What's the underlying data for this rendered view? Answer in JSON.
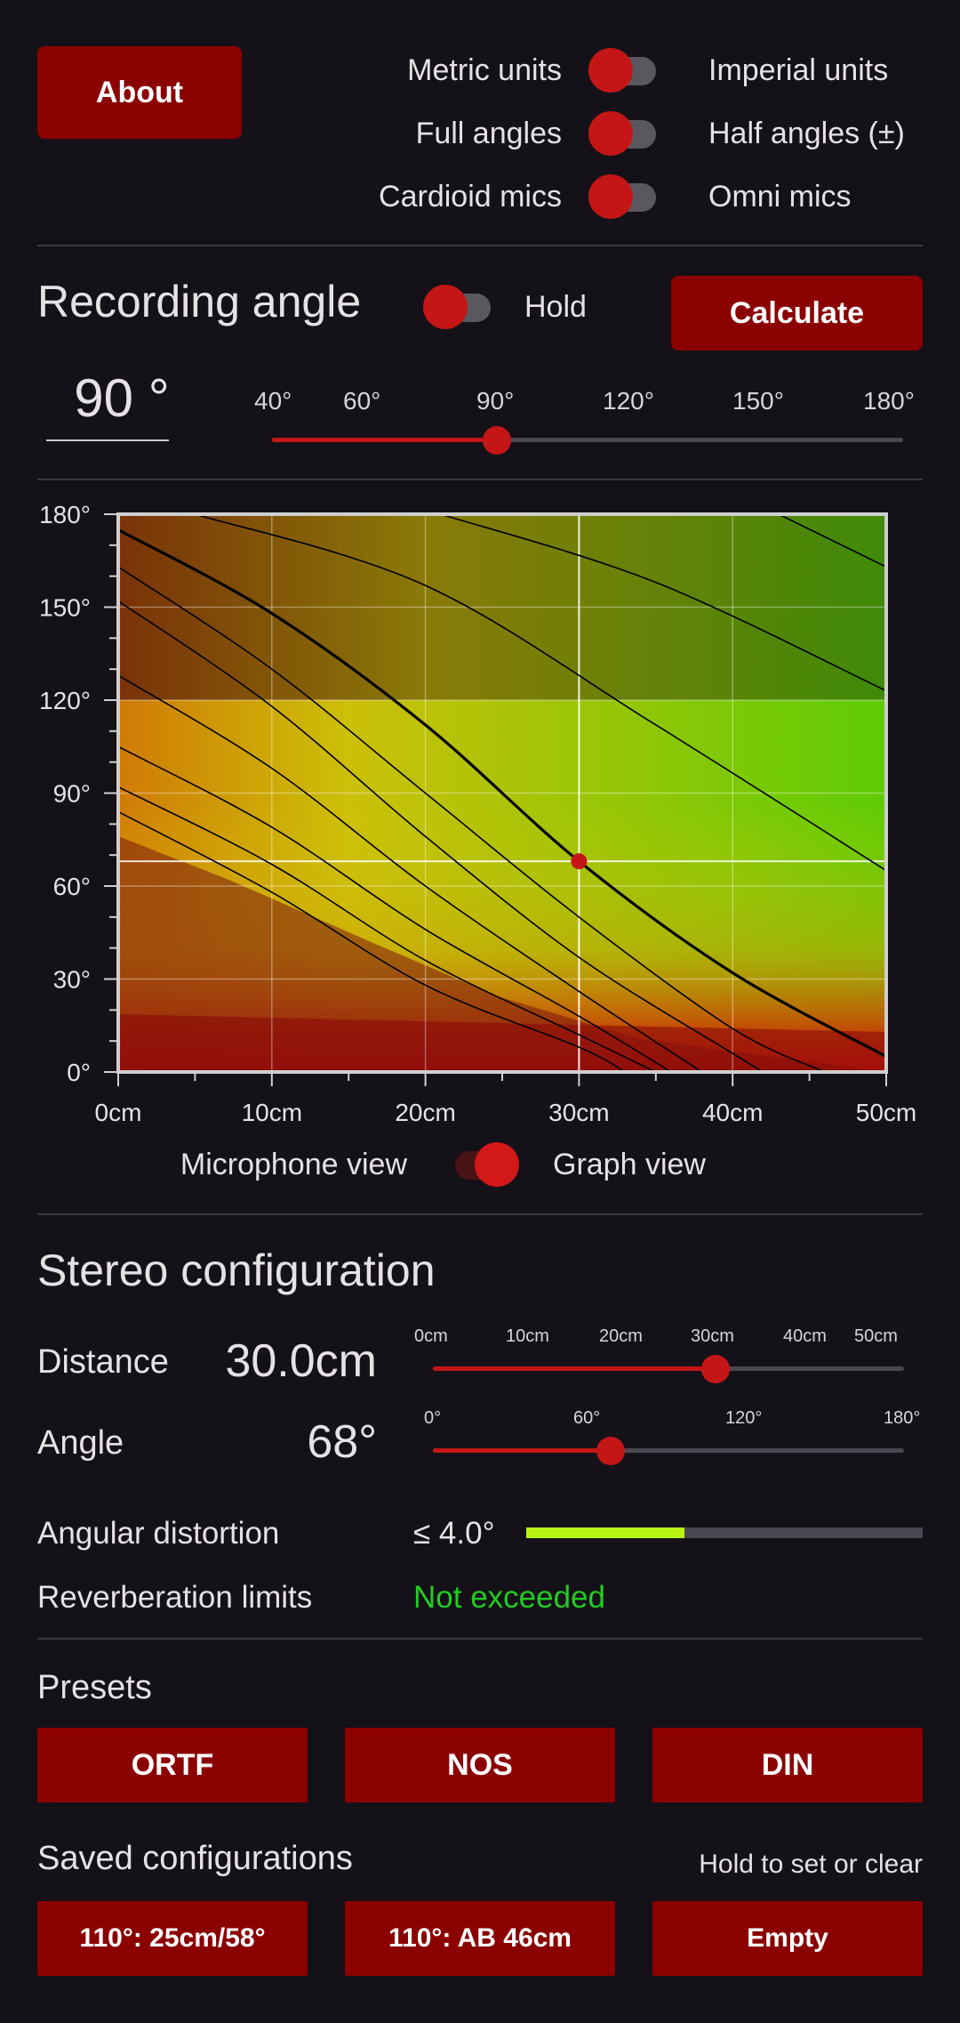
{
  "header": {
    "about_label": "About",
    "toggles": [
      {
        "left": "Metric units",
        "right": "Imperial units"
      },
      {
        "left": "Full angles",
        "right": "Half angles (±)"
      },
      {
        "left": "Cardioid mics",
        "right": "Omni mics"
      }
    ]
  },
  "recording": {
    "title": "Recording angle",
    "hold_label": "Hold",
    "calculate_label": "Calculate",
    "value": "90 °",
    "slider_ticks": [
      "40°",
      "60°",
      "90°",
      "120°",
      "150°",
      "180°"
    ],
    "slider_fraction": 0.357
  },
  "chart_data": {
    "type": "line",
    "x_ticks": [
      "0cm",
      "10cm",
      "20cm",
      "30cm",
      "40cm",
      "50cm"
    ],
    "y_ticks": [
      "180°",
      "150°",
      "120°",
      "90°",
      "60°",
      "30°",
      "0°"
    ],
    "xlim": [
      0,
      50
    ],
    "ylim": [
      0,
      180
    ],
    "marker": {
      "x": 30,
      "y": 68
    },
    "selected_curve": [
      [
        0,
        175
      ],
      [
        10,
        148
      ],
      [
        20,
        112
      ],
      [
        30,
        68
      ],
      [
        40,
        32
      ],
      [
        50,
        5
      ]
    ],
    "curves": [
      [
        [
          5,
          180
        ],
        [
          20,
          157
        ],
        [
          35,
          112
        ],
        [
          50,
          65
        ]
      ],
      [
        [
          21,
          180
        ],
        [
          35,
          158
        ],
        [
          50,
          123
        ]
      ],
      [
        [
          43,
          180
        ],
        [
          50,
          163
        ]
      ],
      [
        [
          0,
          163
        ],
        [
          10,
          130
        ],
        [
          20,
          90
        ],
        [
          30,
          50
        ],
        [
          40,
          14
        ],
        [
          46,
          0
        ]
      ],
      [
        [
          0,
          152
        ],
        [
          10,
          118
        ],
        [
          20,
          76
        ],
        [
          30,
          37
        ],
        [
          40,
          6
        ],
        [
          42,
          0
        ]
      ],
      [
        [
          0,
          128
        ],
        [
          10,
          98
        ],
        [
          20,
          60
        ],
        [
          30,
          26
        ],
        [
          38,
          0
        ]
      ],
      [
        [
          0,
          105
        ],
        [
          10,
          79
        ],
        [
          20,
          46
        ],
        [
          30,
          18
        ],
        [
          36,
          0
        ]
      ],
      [
        [
          0,
          92
        ],
        [
          10,
          67
        ],
        [
          20,
          36
        ],
        [
          30,
          12
        ],
        [
          35,
          0
        ]
      ],
      [
        [
          0,
          84
        ],
        [
          10,
          58
        ],
        [
          20,
          28
        ],
        [
          30,
          8
        ],
        [
          33,
          0
        ]
      ]
    ]
  },
  "view_toggle": {
    "left": "Microphone view",
    "right": "Graph view"
  },
  "stereo": {
    "title": "Stereo configuration",
    "distance_label": "Distance",
    "distance_value": "30.0cm",
    "distance_ticks": [
      "0cm",
      "10cm",
      "20cm",
      "30cm",
      "40cm",
      "50cm"
    ],
    "distance_fraction": 0.6,
    "angle_label": "Angle",
    "angle_value": "68°",
    "angle_ticks": [
      "0°",
      "60°",
      "120°",
      "180°"
    ],
    "angle_fraction": 0.378,
    "distortion_label": "Angular distortion",
    "distortion_value": "≤ 4.0°",
    "distortion_fraction": 0.4,
    "reverb_label": "Reverberation limits",
    "reverb_value": "Not exceeded",
    "reverb_color": "#22cc22",
    "distortion_color": "#b8f514"
  },
  "presets": {
    "title": "Presets",
    "items": [
      "ORTF",
      "NOS",
      "DIN"
    ]
  },
  "saved": {
    "title": "Saved configurations",
    "hint": "Hold to set or clear",
    "items": [
      "110°: 25cm/58°",
      "110°: AB 46cm",
      "Empty"
    ]
  }
}
